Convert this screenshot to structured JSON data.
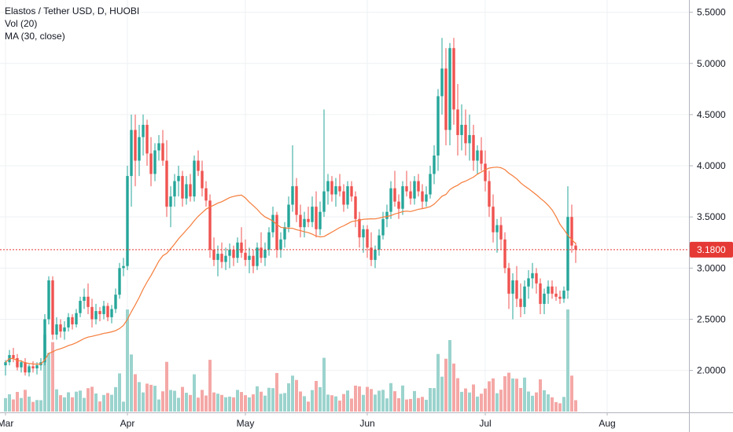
{
  "legend": {
    "symbol": "Elastos / Tether USD, D, HUOBI",
    "volume": "Vol (20)",
    "ma": "MA (30, close)"
  },
  "colors": {
    "up": "#26a69a",
    "down": "#ef5350",
    "vol_up": "#9bd3cd",
    "vol_down": "#f4a8a6",
    "ma": "#f57c3a",
    "last_price": "#e53935",
    "grid": "#eef0f3",
    "axis_line": "#b2b5be"
  },
  "chart_data": {
    "type": "candlestick",
    "price_axis": {
      "ticks": [
        "5.5000",
        "5.0000",
        "4.5000",
        "4.0000",
        "3.5000",
        "3.0000",
        "2.5000",
        "2.0000"
      ],
      "range": [
        1.59,
        5.62
      ]
    },
    "time_axis": {
      "labels": [
        {
          "text": "Mar",
          "day": 0
        },
        {
          "text": "Apr",
          "day": 31
        },
        {
          "text": "May",
          "day": 61
        },
        {
          "text": "Jun",
          "day": 92
        },
        {
          "text": "Jul",
          "day": 122
        },
        {
          "text": "Aug",
          "day": 153
        }
      ]
    },
    "last_price": "3.1800",
    "candles": [
      [
        2.05,
        2.1,
        1.95,
        2.08
      ],
      [
        2.08,
        2.2,
        2.05,
        2.15
      ],
      [
        2.15,
        2.22,
        2.08,
        2.12
      ],
      [
        2.12,
        2.16,
        2.0,
        2.03
      ],
      [
        2.03,
        2.1,
        1.98,
        2.08
      ],
      [
        2.08,
        2.12,
        1.95,
        1.98
      ],
      [
        1.98,
        2.06,
        1.94,
        2.04
      ],
      [
        2.04,
        2.09,
        1.98,
        2.02
      ],
      [
        2.02,
        2.08,
        1.96,
        2.05
      ],
      [
        2.05,
        2.12,
        2.0,
        2.08
      ],
      [
        2.08,
        2.55,
        2.05,
        2.5
      ],
      [
        2.5,
        2.92,
        2.45,
        2.88
      ],
      [
        2.88,
        2.92,
        2.3,
        2.35
      ],
      [
        2.35,
        2.52,
        2.3,
        2.45
      ],
      [
        2.45,
        2.5,
        2.32,
        2.38
      ],
      [
        2.38,
        2.48,
        2.3,
        2.42
      ],
      [
        2.42,
        2.56,
        2.38,
        2.52
      ],
      [
        2.52,
        2.55,
        2.4,
        2.45
      ],
      [
        2.45,
        2.6,
        2.42,
        2.56
      ],
      [
        2.56,
        2.72,
        2.52,
        2.68
      ],
      [
        2.68,
        2.8,
        2.6,
        2.72
      ],
      [
        2.72,
        2.85,
        2.55,
        2.62
      ],
      [
        2.62,
        2.7,
        2.42,
        2.5
      ],
      [
        2.5,
        2.65,
        2.45,
        2.58
      ],
      [
        2.58,
        2.62,
        2.48,
        2.55
      ],
      [
        2.55,
        2.68,
        2.5,
        2.63
      ],
      [
        2.63,
        2.66,
        2.48,
        2.52
      ],
      [
        2.52,
        2.64,
        2.46,
        2.6
      ],
      [
        2.6,
        2.8,
        2.56,
        2.74
      ],
      [
        2.74,
        3.05,
        2.7,
        3.0
      ],
      [
        3.0,
        3.1,
        2.92,
        3.02
      ],
      [
        3.02,
        4.0,
        2.98,
        3.9
      ],
      [
        3.9,
        4.5,
        3.6,
        4.35
      ],
      [
        4.35,
        4.5,
        3.8,
        4.05
      ],
      [
        4.05,
        4.4,
        3.9,
        4.28
      ],
      [
        4.28,
        4.5,
        4.1,
        4.4
      ],
      [
        4.4,
        4.45,
        4.0,
        4.12
      ],
      [
        4.12,
        4.28,
        3.8,
        3.92
      ],
      [
        3.92,
        4.22,
        3.85,
        4.15
      ],
      [
        4.15,
        4.3,
        4.05,
        4.22
      ],
      [
        4.22,
        4.35,
        4.0,
        4.05
      ],
      [
        4.05,
        4.25,
        3.5,
        3.6
      ],
      [
        3.6,
        3.8,
        3.4,
        3.7
      ],
      [
        3.7,
        3.92,
        3.6,
        3.85
      ],
      [
        3.85,
        4.0,
        3.7,
        3.9
      ],
      [
        3.9,
        3.95,
        3.6,
        3.68
      ],
      [
        3.68,
        3.9,
        3.62,
        3.82
      ],
      [
        3.82,
        3.92,
        3.65,
        3.7
      ],
      [
        3.7,
        4.1,
        3.65,
        4.05
      ],
      [
        4.05,
        4.15,
        3.9,
        3.95
      ],
      [
        3.95,
        4.05,
        3.7,
        3.78
      ],
      [
        3.78,
        3.85,
        3.6,
        3.66
      ],
      [
        3.66,
        3.72,
        3.1,
        3.18
      ],
      [
        3.18,
        3.3,
        3.02,
        3.08
      ],
      [
        3.08,
        3.22,
        2.92,
        3.14
      ],
      [
        3.14,
        3.25,
        3.0,
        3.06
      ],
      [
        3.06,
        3.2,
        2.98,
        3.12
      ],
      [
        3.12,
        3.24,
        3.0,
        3.18
      ],
      [
        3.18,
        3.22,
        3.02,
        3.1
      ],
      [
        3.1,
        3.3,
        3.05,
        3.25
      ],
      [
        3.25,
        3.4,
        3.1,
        3.15
      ],
      [
        3.15,
        3.28,
        3.02,
        3.08
      ],
      [
        3.08,
        3.2,
        2.95,
        3.12
      ],
      [
        3.12,
        3.18,
        2.95,
        3.02
      ],
      [
        3.02,
        3.25,
        2.98,
        3.2
      ],
      [
        3.2,
        3.35,
        3.05,
        3.1
      ],
      [
        3.1,
        3.25,
        3.02,
        3.18
      ],
      [
        3.18,
        3.4,
        3.12,
        3.35
      ],
      [
        3.35,
        3.6,
        3.3,
        3.52
      ],
      [
        3.52,
        3.55,
        3.1,
        3.18
      ],
      [
        3.18,
        3.35,
        3.1,
        3.28
      ],
      [
        3.28,
        3.45,
        3.2,
        3.4
      ],
      [
        3.4,
        3.7,
        3.35,
        3.62
      ],
      [
        3.62,
        4.2,
        3.55,
        3.8
      ],
      [
        3.8,
        3.88,
        3.45,
        3.52
      ],
      [
        3.52,
        3.62,
        3.3,
        3.4
      ],
      [
        3.4,
        3.55,
        3.3,
        3.48
      ],
      [
        3.48,
        3.6,
        3.4,
        3.45
      ],
      [
        3.45,
        3.7,
        3.4,
        3.6
      ],
      [
        3.6,
        3.75,
        3.3,
        3.38
      ],
      [
        3.38,
        3.65,
        3.32,
        3.55
      ],
      [
        3.55,
        4.55,
        3.5,
        3.75
      ],
      [
        3.75,
        3.92,
        3.62,
        3.85
      ],
      [
        3.85,
        3.9,
        3.65,
        3.72
      ],
      [
        3.72,
        3.88,
        3.6,
        3.8
      ],
      [
        3.8,
        3.92,
        3.7,
        3.75
      ],
      [
        3.75,
        3.82,
        3.55,
        3.62
      ],
      [
        3.62,
        3.85,
        3.58,
        3.8
      ],
      [
        3.8,
        3.85,
        3.65,
        3.7
      ],
      [
        3.7,
        3.75,
        3.4,
        3.48
      ],
      [
        3.48,
        3.55,
        3.2,
        3.3
      ],
      [
        3.3,
        3.42,
        3.15,
        3.38
      ],
      [
        3.38,
        3.42,
        3.1,
        3.2
      ],
      [
        3.2,
        3.35,
        3.02,
        3.08
      ],
      [
        3.08,
        3.22,
        3.0,
        3.18
      ],
      [
        3.18,
        3.38,
        3.12,
        3.32
      ],
      [
        3.32,
        3.55,
        3.28,
        3.48
      ],
      [
        3.48,
        3.62,
        3.4,
        3.55
      ],
      [
        3.55,
        3.85,
        3.48,
        3.78
      ],
      [
        3.78,
        3.95,
        3.6,
        3.65
      ],
      [
        3.65,
        3.72,
        3.48,
        3.58
      ],
      [
        3.58,
        3.85,
        3.52,
        3.8
      ],
      [
        3.8,
        3.95,
        3.7,
        3.75
      ],
      [
        3.75,
        3.85,
        3.62,
        3.68
      ],
      [
        3.68,
        3.9,
        3.62,
        3.85
      ],
      [
        3.85,
        3.92,
        3.7,
        3.75
      ],
      [
        3.75,
        3.82,
        3.58,
        3.65
      ],
      [
        3.65,
        3.8,
        3.6,
        3.72
      ],
      [
        3.72,
        4.0,
        3.68,
        3.92
      ],
      [
        3.92,
        4.2,
        3.82,
        4.1
      ],
      [
        4.1,
        4.75,
        3.95,
        4.68
      ],
      [
        4.68,
        5.25,
        4.5,
        4.95
      ],
      [
        4.95,
        5.15,
        4.2,
        4.35
      ],
      [
        4.35,
        5.2,
        4.2,
        5.15
      ],
      [
        5.15,
        5.25,
        4.4,
        4.55
      ],
      [
        4.55,
        4.8,
        4.1,
        4.3
      ],
      [
        4.3,
        4.6,
        4.15,
        4.4
      ],
      [
        4.4,
        4.55,
        4.1,
        4.22
      ],
      [
        4.22,
        4.5,
        4.05,
        4.3
      ],
      [
        4.3,
        4.4,
        3.95,
        4.05
      ],
      [
        4.05,
        4.2,
        3.92,
        4.15
      ],
      [
        4.15,
        4.28,
        3.95,
        4.02
      ],
      [
        4.02,
        4.15,
        3.75,
        3.85
      ],
      [
        3.85,
        3.95,
        3.5,
        3.6
      ],
      [
        3.6,
        3.72,
        3.25,
        3.35
      ],
      [
        3.35,
        3.48,
        3.15,
        3.42
      ],
      [
        3.42,
        3.5,
        3.18,
        3.28
      ],
      [
        3.28,
        3.35,
        2.95,
        3.0
      ],
      [
        3.0,
        3.05,
        2.6,
        2.75
      ],
      [
        2.75,
        2.95,
        2.5,
        2.88
      ],
      [
        2.88,
        3.02,
        2.62,
        2.7
      ],
      [
        2.7,
        2.85,
        2.52,
        2.62
      ],
      [
        2.62,
        2.88,
        2.55,
        2.82
      ],
      [
        2.82,
        2.98,
        2.7,
        2.9
      ],
      [
        2.9,
        3.05,
        2.8,
        2.95
      ],
      [
        2.95,
        3.0,
        2.75,
        2.85
      ],
      [
        2.85,
        2.9,
        2.55,
        2.65
      ],
      [
        2.65,
        2.8,
        2.55,
        2.75
      ],
      [
        2.75,
        2.88,
        2.65,
        2.82
      ],
      [
        2.82,
        2.88,
        2.7,
        2.75
      ],
      [
        2.75,
        2.82,
        2.68,
        2.72
      ],
      [
        2.72,
        2.78,
        2.65,
        2.7
      ],
      [
        2.7,
        2.82,
        2.66,
        2.78
      ],
      [
        2.78,
        3.8,
        2.7,
        3.5
      ],
      [
        3.5,
        3.62,
        3.15,
        3.22
      ],
      [
        3.22,
        3.25,
        3.05,
        3.18
      ]
    ]
  }
}
